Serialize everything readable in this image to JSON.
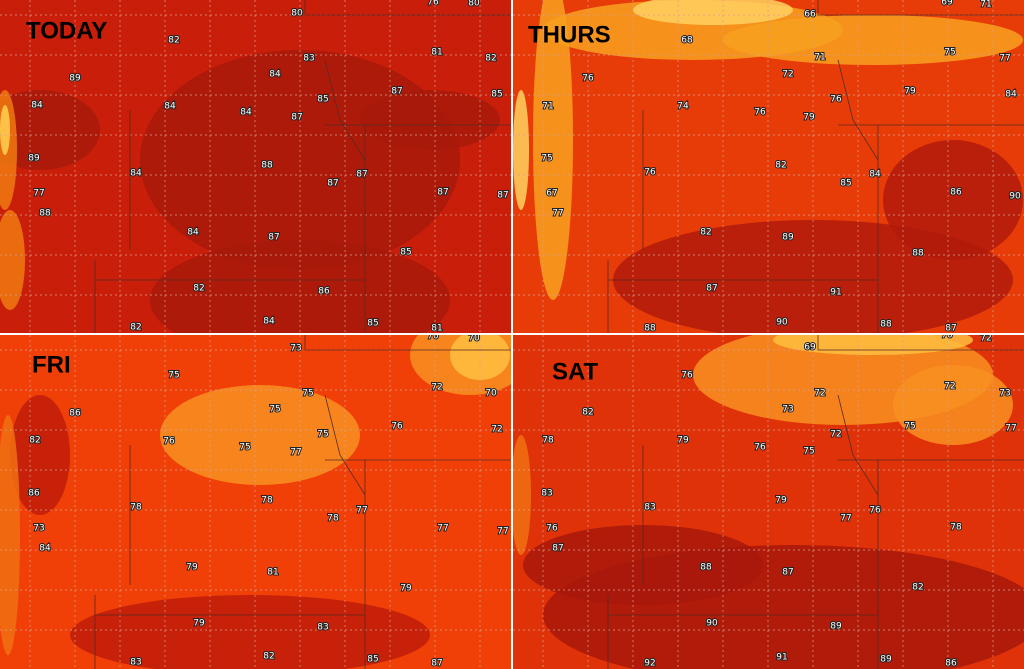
{
  "panels": [
    {
      "label": "TODAY",
      "temperatures": [
        80,
        76,
        80,
        82,
        83,
        81,
        82,
        89,
        84,
        87,
        85,
        84,
        84,
        84,
        85,
        87,
        89,
        88,
        84,
        87,
        87,
        87,
        87,
        77,
        88,
        84,
        87,
        85,
        82,
        86,
        82,
        84,
        85,
        81
      ]
    },
    {
      "label": "THURS",
      "temperatures": [
        66,
        69,
        71,
        68,
        75,
        77,
        71,
        72,
        76,
        79,
        84,
        71,
        74,
        76,
        76,
        79,
        75,
        76,
        82,
        85,
        84,
        86,
        90,
        67,
        77,
        82,
        89,
        88,
        87,
        91,
        88,
        90,
        88,
        87
      ]
    },
    {
      "label": "FRI",
      "temperatures": [
        73,
        70,
        70,
        75,
        75,
        72,
        70,
        86,
        75,
        76,
        72,
        82,
        76,
        75,
        75,
        77,
        86,
        78,
        78,
        78,
        77,
        77,
        77,
        73,
        84,
        79,
        81,
        79,
        79,
        83,
        82,
        83,
        85,
        87
      ]
    },
    {
      "label": "SAT",
      "temperatures": [
        69,
        70,
        72,
        76,
        72,
        73,
        72,
        73,
        82,
        75,
        77,
        78,
        79,
        76,
        72,
        75,
        83,
        79,
        83,
        77,
        76,
        78,
        76,
        87,
        88,
        87,
        82,
        90,
        89,
        92,
        91,
        89,
        86
      ]
    }
  ]
}
